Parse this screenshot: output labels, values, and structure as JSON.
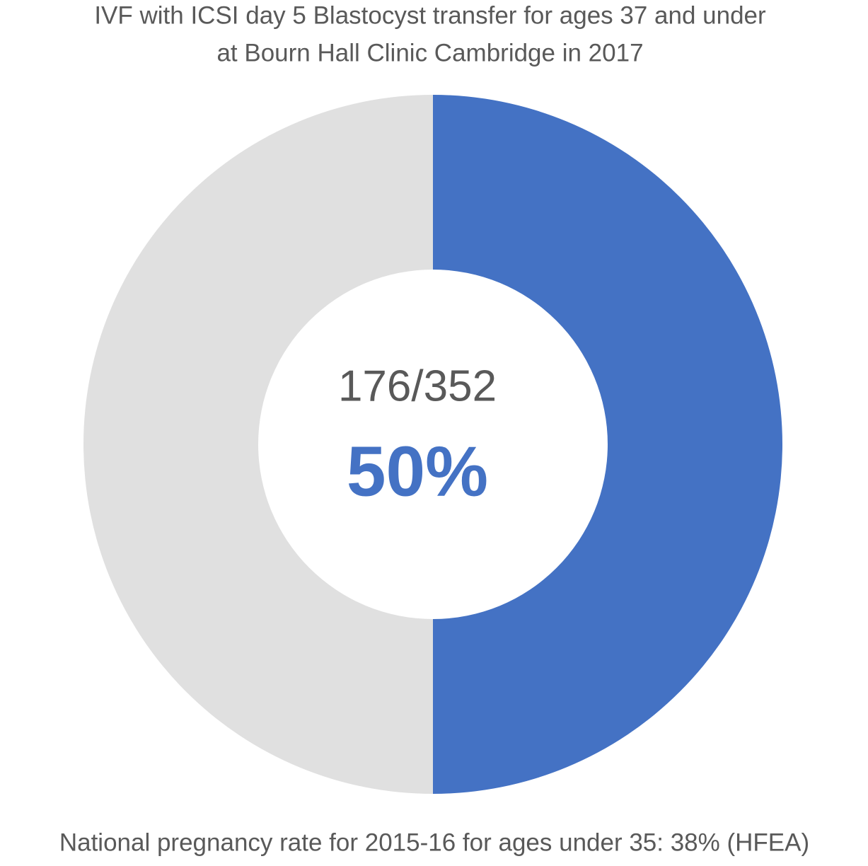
{
  "chart_data": {
    "type": "donut",
    "title": [
      "IVF with ICSI day 5 Blastocyst transfer for ages 37 and under",
      "at Bourn Hall Clinic Cambridge in 2017"
    ],
    "values": [
      50,
      50
    ],
    "colors": [
      "#4472c4",
      "#e0e0e0"
    ],
    "center_text": "176/352",
    "value_labels": [
      "50%",
      null
    ],
    "caption": "National pregnancy rate for 2015-16 for ages under 35: 38% (HFEA)"
  }
}
